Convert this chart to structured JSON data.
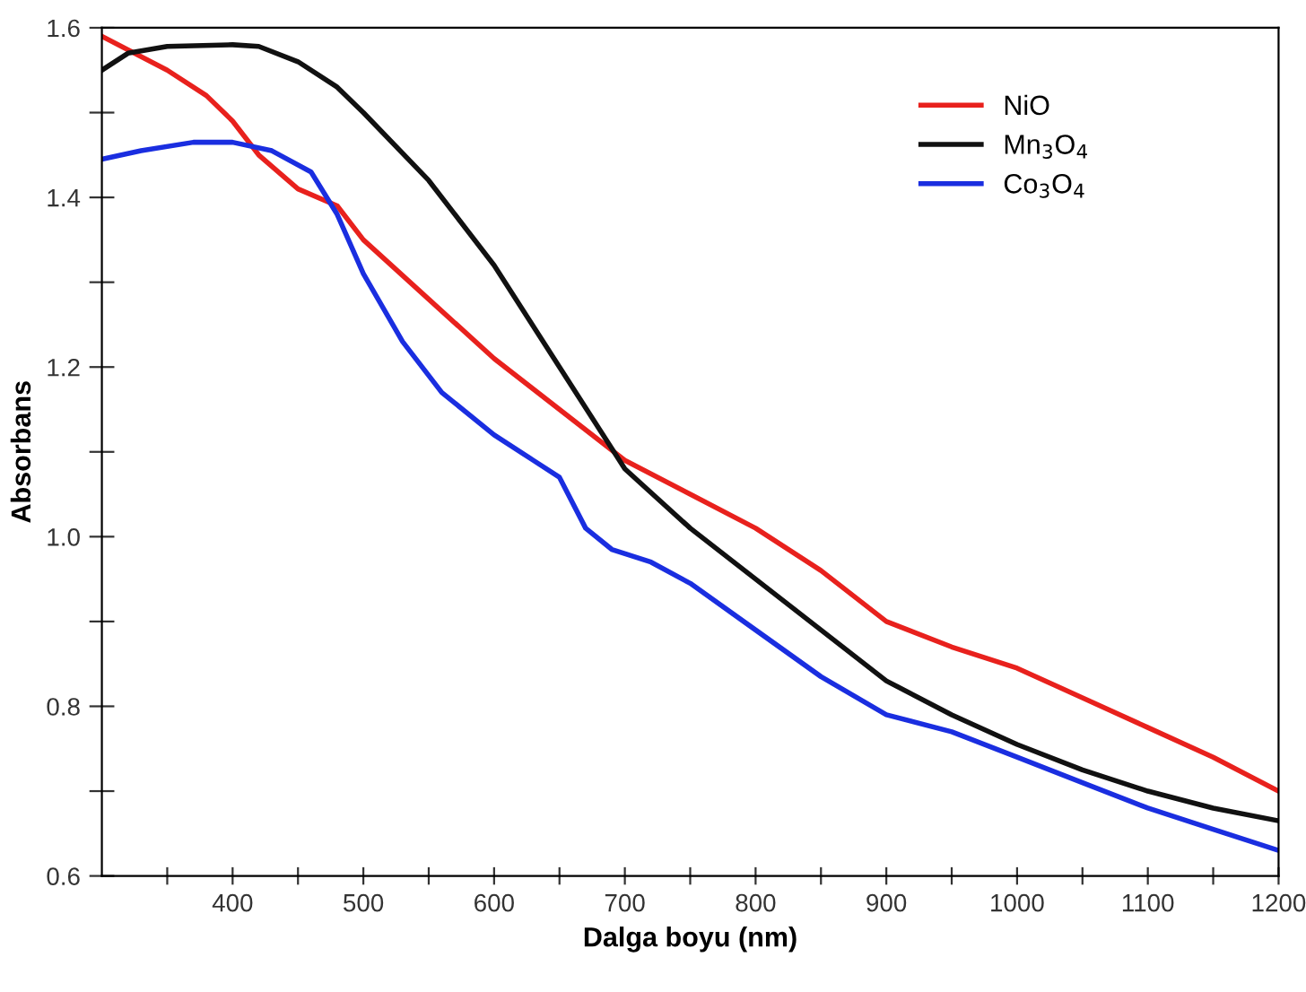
{
  "chart_data": {
    "type": "line",
    "xlabel": "Dalga boyu (nm)",
    "ylabel": "Absorbans",
    "xlim": [
      300,
      1200
    ],
    "ylim": [
      0.6,
      1.6
    ],
    "xticks": [
      {
        "value": 350,
        "label": null
      },
      400,
      {
        "value": 450,
        "label": null
      },
      500,
      {
        "value": 550,
        "label": null
      },
      600,
      {
        "value": 650,
        "label": null
      },
      700,
      {
        "value": 750,
        "label": null
      },
      800,
      {
        "value": 850,
        "label": null
      },
      900,
      {
        "value": 950,
        "label": null
      },
      1000,
      {
        "value": 1050,
        "label": null
      },
      1100,
      {
        "value": 1150,
        "label": null
      },
      1200
    ],
    "yticks": [
      {
        "value": 0.6,
        "label": "0.6"
      },
      {
        "value": 0.7,
        "label": null
      },
      {
        "value": 0.8,
        "label": "0.8"
      },
      {
        "value": 0.9,
        "label": null
      },
      {
        "value": 1.0,
        "label": "1.0"
      },
      {
        "value": 1.1,
        "label": null
      },
      {
        "value": 1.2,
        "label": "1.2"
      },
      {
        "value": 1.3,
        "label": null
      },
      {
        "value": 1.4,
        "label": "1.4"
      },
      {
        "value": 1.5,
        "label": null
      },
      {
        "value": 1.6,
        "label": "1.6"
      }
    ],
    "grid": false,
    "legend": "top right",
    "marker": "none",
    "line_style": "solid",
    "series": [
      {
        "name": "NiO",
        "color": "#e8211d",
        "x": [
          300,
          350,
          380,
          400,
          420,
          450,
          480,
          500,
          550,
          600,
          650,
          700,
          750,
          800,
          850,
          900,
          950,
          1000,
          1050,
          1100,
          1150,
          1200
        ],
        "values": [
          1.59,
          1.55,
          1.52,
          1.49,
          1.45,
          1.41,
          1.39,
          1.35,
          1.28,
          1.21,
          1.15,
          1.09,
          1.05,
          1.01,
          0.96,
          0.9,
          0.87,
          0.845,
          0.81,
          0.775,
          0.74,
          0.7
        ]
      },
      {
        "name": "Mn$_{3}$O$_{4}$",
        "color": "#111111",
        "x": [
          300,
          320,
          350,
          400,
          420,
          450,
          480,
          500,
          550,
          600,
          650,
          700,
          750,
          800,
          850,
          900,
          950,
          1000,
          1050,
          1100,
          1150,
          1200
        ],
        "values": [
          1.55,
          1.57,
          1.578,
          1.58,
          1.578,
          1.56,
          1.53,
          1.5,
          1.42,
          1.32,
          1.2,
          1.08,
          1.01,
          0.95,
          0.89,
          0.83,
          0.79,
          0.755,
          0.725,
          0.7,
          0.68,
          0.665
        ]
      },
      {
        "name": "Co$_{3}$O$_{4}$",
        "color": "#1a2ee0",
        "x": [
          300,
          330,
          370,
          400,
          430,
          460,
          480,
          500,
          530,
          560,
          600,
          630,
          650,
          670,
          690,
          720,
          750,
          800,
          850,
          900,
          950,
          1000,
          1050,
          1100,
          1150,
          1200
        ],
        "values": [
          1.445,
          1.455,
          1.465,
          1.465,
          1.455,
          1.43,
          1.38,
          1.31,
          1.23,
          1.17,
          1.12,
          1.09,
          1.07,
          1.01,
          0.985,
          0.97,
          0.945,
          0.89,
          0.835,
          0.79,
          0.77,
          0.74,
          0.71,
          0.68,
          0.655,
          0.63
        ]
      }
    ]
  }
}
